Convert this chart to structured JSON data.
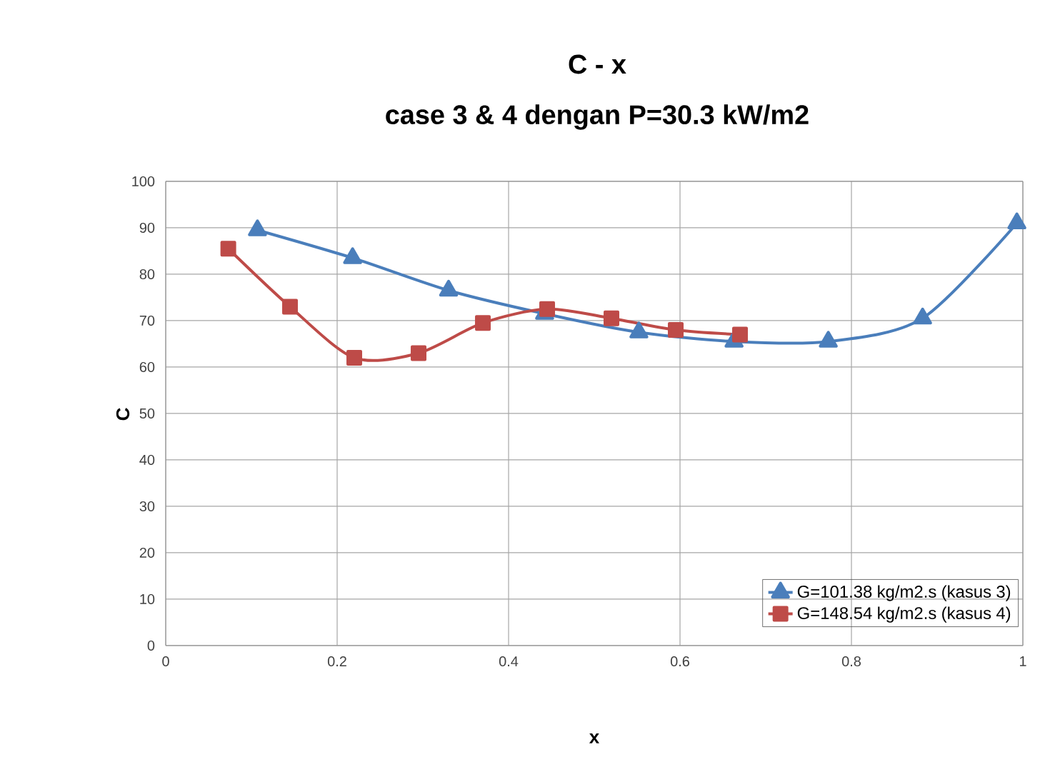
{
  "chart_data": {
    "type": "line",
    "title": "C - x",
    "subtitle": "case 3 & 4 dengan P=30.3 kW/m2",
    "xlabel": "x",
    "ylabel": "C",
    "xlim": [
      0,
      1
    ],
    "xticks": [
      0,
      0.2,
      0.4,
      0.6,
      0.8,
      1
    ],
    "ylim": [
      0,
      100
    ],
    "yticks": [
      0,
      10,
      20,
      30,
      40,
      50,
      60,
      70,
      80,
      90,
      100
    ],
    "grid": true,
    "legend": "bottom right",
    "series": [
      {
        "name": "G=101.38 kg/m2.s (kasus 3)",
        "color": "#4a7ebb",
        "marker": "triangle",
        "x": [
          0.107,
          0.218,
          0.33,
          0.442,
          0.552,
          0.663,
          0.773,
          0.883,
          0.993
        ],
        "values": [
          89.5,
          83.5,
          76.5,
          71.5,
          67.5,
          65.5,
          65.5,
          70.5,
          91
        ]
      },
      {
        "name": "G=148.54 kg/m2.s (kasus 4)",
        "color": "#be4b48",
        "marker": "square",
        "x": [
          0.073,
          0.145,
          0.22,
          0.295,
          0.37,
          0.445,
          0.52,
          0.595,
          0.67
        ],
        "values": [
          85.5,
          73,
          62,
          63,
          69.5,
          72.5,
          70.5,
          68,
          67
        ]
      }
    ]
  }
}
